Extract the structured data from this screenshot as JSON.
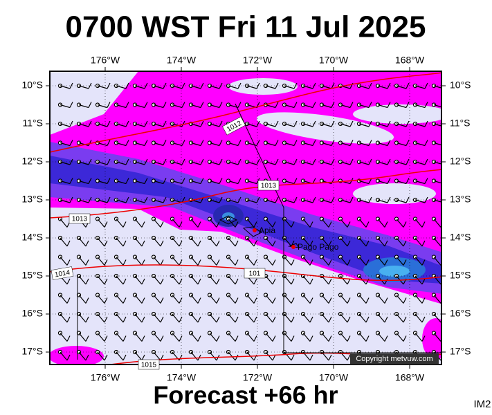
{
  "header": {
    "title": "0700 WST Fri 11 Jul 2025"
  },
  "map": {
    "lon_labels": [
      "176°W",
      "174°W",
      "172°W",
      "170°W",
      "168°W"
    ],
    "lat_labels": [
      "10°S",
      "11°S",
      "12°S",
      "13°S",
      "14°S",
      "15°S",
      "16°S",
      "17°S"
    ],
    "isobar_labels": [
      "1012",
      "1013",
      "1013",
      "1014",
      "101",
      "1015"
    ],
    "places": [
      "Apia",
      "Pago Pago"
    ],
    "copyright": "Copyright metvuw.com"
  },
  "footer": {
    "forecast": "Forecast +66 hr",
    "code": "IM2"
  }
}
